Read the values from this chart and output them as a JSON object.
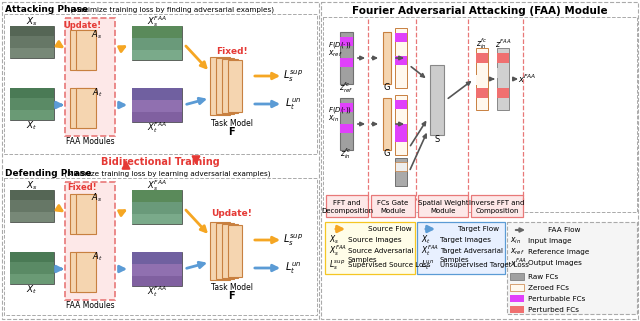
{
  "title_faa": "Fourier Adversarial Attacking (FAA) Module",
  "attack_title": "Attacking Phase",
  "attack_sub": " (Maximize training loss by finding adversarial examples)",
  "defend_title": "Defending Phase",
  "defend_sub": " (Minimize training loss by learning adversarial examples)",
  "bidir": "Bidirectional Training",
  "orange": "#f5a623",
  "blue": "#5b9bd5",
  "red": "#e53935",
  "pink_bg": "#fde8e8",
  "pink_border": "#e87878",
  "gray_dark": "#8a8a8a",
  "gray_fc": "#a0a0a0",
  "orange_fc": "#f5d5b0",
  "orange_fc_border": "#c88040",
  "magenta": "#e040fb",
  "salmon": "#f07070",
  "task_fc": "#f5d5b0",
  "task_border": "#c88040",
  "white": "#ffffff",
  "leg_yellow_bg": "#fffde8",
  "leg_yellow_border": "#f5c623",
  "leg_blue_bg": "#e8f0ff",
  "leg_blue_border": "#5b9bd5",
  "leg_gray_bg": "#f5f5f5",
  "leg_gray_border": "#aaaaaa"
}
